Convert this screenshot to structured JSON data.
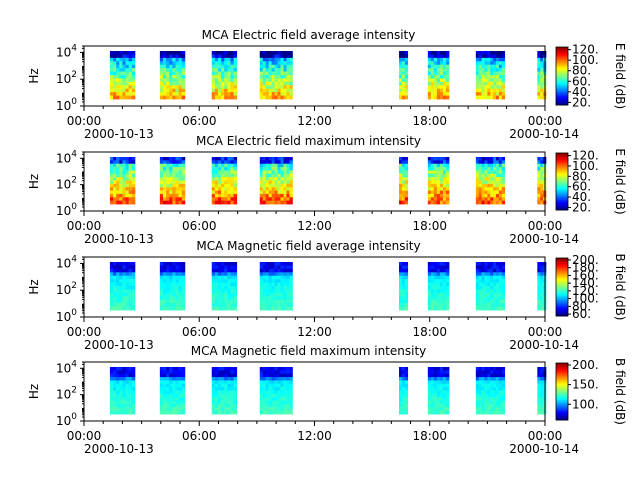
{
  "chart_data": [
    {
      "type": "heatmap",
      "title": "MCA  Electric field average intensity",
      "ylabel": "Hz",
      "ylim": [
        1,
        30000
      ],
      "yscale": "log",
      "y_ticks": [
        {
          "exp": "0"
        },
        {
          "exp": "2"
        },
        {
          "exp": "4"
        }
      ],
      "x_ticks": [
        "00:00",
        "06:00",
        "12:00",
        "18:00",
        "00:00"
      ],
      "x_date_labels": [
        "2000-10-13",
        "2000-10-14"
      ],
      "xlim_hours": [
        0,
        24
      ],
      "colorbar": {
        "label": "E field (dB)",
        "range": [
          15,
          125
        ],
        "ticks": [
          20,
          40,
          60,
          80,
          100,
          120
        ],
        "tick_labels": [
          "20.",
          "40.",
          "60.",
          "80.",
          "100.",
          "120."
        ]
      },
      "field": "electric",
      "stat": "average"
    },
    {
      "type": "heatmap",
      "title": "MCA  Electric field maximum intensity",
      "ylabel": "Hz",
      "ylim": [
        1,
        30000
      ],
      "yscale": "log",
      "y_ticks": [
        {
          "exp": "0"
        },
        {
          "exp": "2"
        },
        {
          "exp": "4"
        }
      ],
      "x_ticks": [
        "00:00",
        "06:00",
        "12:00",
        "18:00",
        "00:00"
      ],
      "x_date_labels": [
        "2000-10-13",
        "2000-10-14"
      ],
      "xlim_hours": [
        0,
        24
      ],
      "colorbar": {
        "label": "E field (dB)",
        "range": [
          15,
          125
        ],
        "ticks": [
          20,
          40,
          60,
          80,
          100,
          120
        ],
        "tick_labels": [
          "20.",
          "40.",
          "60.",
          "80.",
          "100.",
          "120."
        ]
      },
      "field": "electric",
      "stat": "maximum"
    },
    {
      "type": "heatmap",
      "title": "MCA  Magnetic field average intensity",
      "ylabel": "Hz",
      "ylim": [
        1,
        30000
      ],
      "yscale": "log",
      "y_ticks": [
        {
          "exp": "0"
        },
        {
          "exp": "2"
        },
        {
          "exp": "4"
        }
      ],
      "x_ticks": [
        "00:00",
        "06:00",
        "12:00",
        "18:00",
        "00:00"
      ],
      "x_date_labels": [
        "2000-10-13",
        "2000-10-14"
      ],
      "xlim_hours": [
        0,
        24
      ],
      "colorbar": {
        "label": "B field (dB)",
        "range": [
          55,
          205
        ],
        "ticks": [
          60,
          80,
          100,
          120,
          140,
          160,
          180,
          200
        ],
        "tick_labels": [
          "60.",
          "80.",
          "100.",
          "120.",
          "140.",
          "160.",
          "180.",
          "200."
        ]
      },
      "field": "magnetic",
      "stat": "average"
    },
    {
      "type": "heatmap",
      "title": "MCA  Magnetic field maximum intensity",
      "ylabel": "Hz",
      "ylim": [
        1,
        30000
      ],
      "yscale": "log",
      "y_ticks": [
        {
          "exp": "0"
        },
        {
          "exp": "2"
        },
        {
          "exp": "4"
        }
      ],
      "x_ticks": [
        "00:00",
        "06:00",
        "12:00",
        "18:00",
        "00:00"
      ],
      "x_date_labels": [
        "2000-10-13",
        "2000-10-14"
      ],
      "xlim_hours": [
        0,
        24
      ],
      "colorbar": {
        "label": "B field (dB)",
        "range": [
          60,
          205
        ],
        "ticks": [
          100,
          150,
          200
        ],
        "tick_labels": [
          "100.",
          "150.",
          "200."
        ]
      },
      "field": "magnetic",
      "stat": "maximum"
    }
  ],
  "data_intervals_hours": [
    [
      1.35,
      2.65
    ],
    [
      3.95,
      5.25
    ],
    [
      6.65,
      7.95
    ],
    [
      9.15,
      10.85
    ],
    [
      16.4,
      16.85
    ],
    [
      17.9,
      19.0
    ],
    [
      20.4,
      21.9
    ],
    [
      23.6,
      24.05
    ]
  ]
}
